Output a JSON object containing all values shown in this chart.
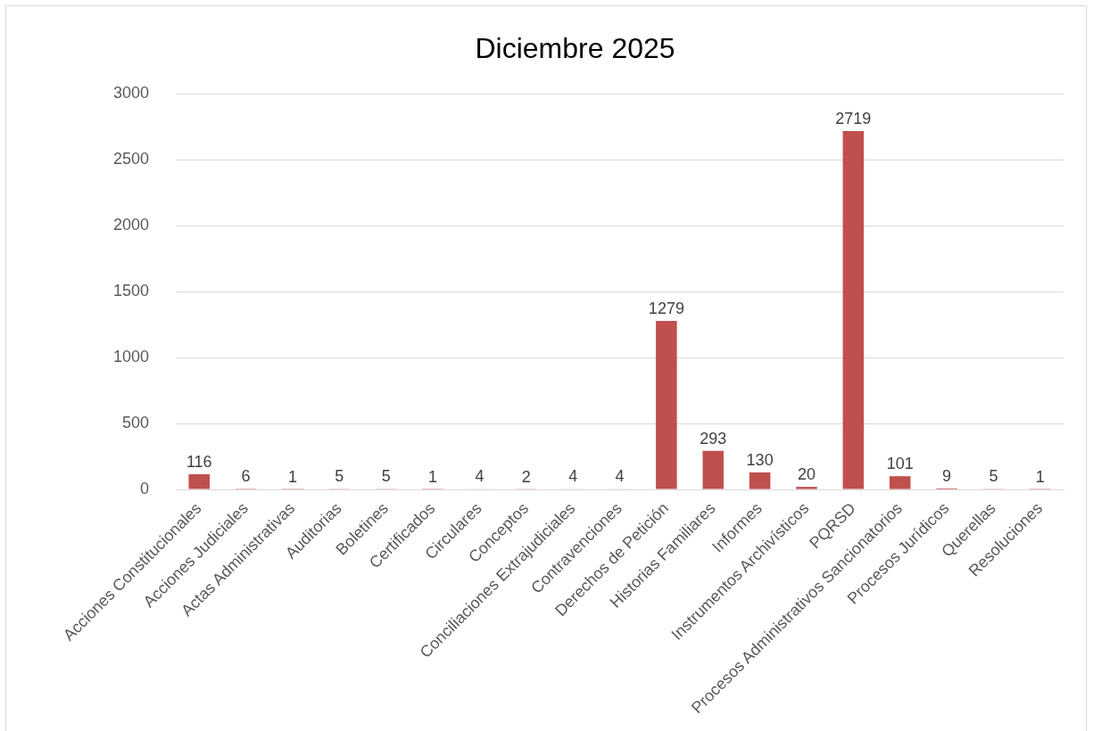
{
  "chart_data": {
    "type": "bar",
    "title": "Diciembre 2025",
    "categories": [
      "Acciones Constitucionales",
      "Acciones Judiciales",
      "Actas Administrativas",
      "Auditorias",
      "Boletines",
      "Certificados",
      "Circulares",
      "Conceptos",
      "Conciliaciones Extrajudiciales",
      "Contravenciones",
      "Derechos de Petición",
      "Historias Familiares",
      "Informes",
      "Instrumentos Archivísticos",
      "PQRSD",
      "Procesos Administrativos Sancionatorios",
      "Procesos Jurídicos",
      "Querellas",
      "Resoluciones"
    ],
    "values": [
      116,
      6,
      1,
      5,
      5,
      1,
      4,
      2,
      4,
      4,
      1279,
      293,
      130,
      20,
      2719,
      101,
      9,
      5,
      1
    ],
    "color": "#c0504d",
    "ylim": [
      0,
      3000
    ],
    "yticks": [
      0,
      500,
      1000,
      1500,
      2000,
      2500,
      3000
    ],
    "grid": "y",
    "legend": false,
    "data_labels": true
  }
}
